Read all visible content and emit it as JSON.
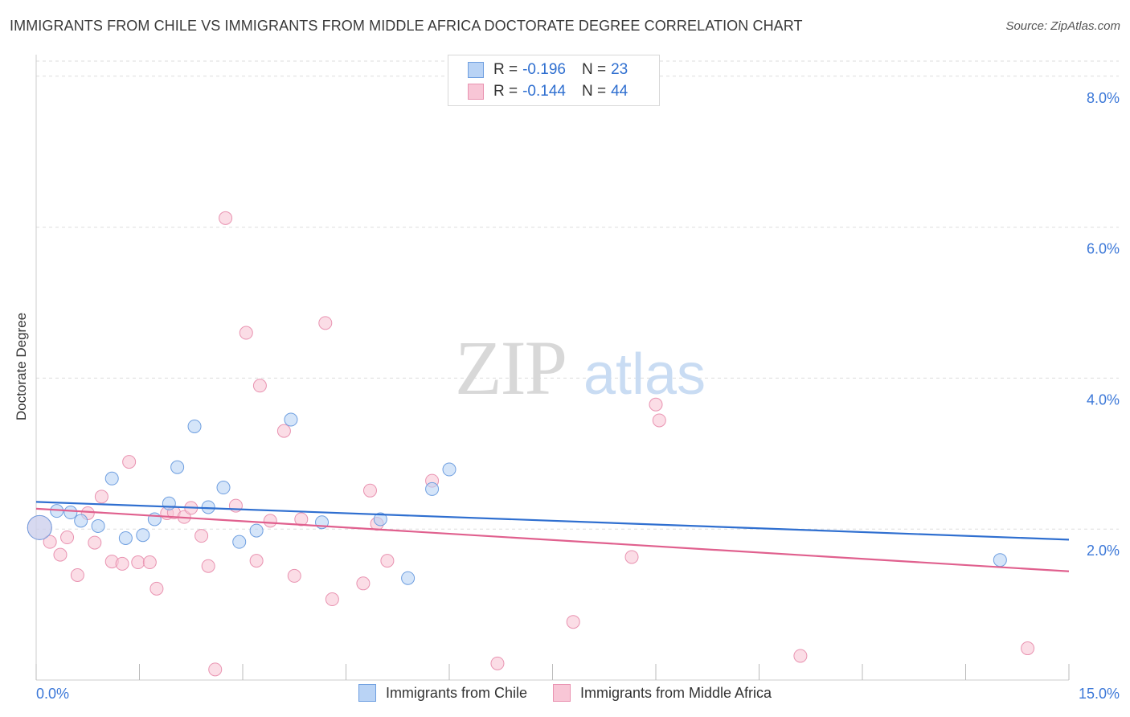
{
  "header": {
    "title": "IMMIGRANTS FROM CHILE VS IMMIGRANTS FROM MIDDLE AFRICA DOCTORATE DEGREE CORRELATION CHART",
    "source": "Source: ZipAtlas.com"
  },
  "watermark": {
    "zip": "ZIP",
    "atlas": "atlas"
  },
  "legend_stats": {
    "r_label": "R =",
    "n_label": "N =",
    "series": [
      {
        "r": "-0.196",
        "n": "23"
      },
      {
        "r": "-0.144",
        "n": "44"
      }
    ]
  },
  "colors": {
    "chile_fill": "#b9d3f5",
    "chile_stroke": "#6f9fe0",
    "chile_line": "#2f6fd0",
    "africa_fill": "#f8c6d6",
    "africa_stroke": "#e993b1",
    "africa_line": "#e0608e",
    "axis_text": "#3c78d8",
    "grid": "#dddddd"
  },
  "chart_data": {
    "type": "scatter",
    "title": "IMMIGRANTS FROM CHILE VS IMMIGRANTS FROM MIDDLE AFRICA DOCTORATE DEGREE CORRELATION CHART",
    "xlabel": "",
    "ylabel": "Doctorate Degree",
    "xlim": [
      0,
      15
    ],
    "ylim": [
      0,
      8.2
    ],
    "x_tick_labels": [
      "0.0%",
      "15.0%"
    ],
    "y_ticks": [
      2,
      4,
      6,
      8
    ],
    "y_tick_labels": [
      "2.0%",
      "4.0%",
      "6.0%",
      "8.0%"
    ],
    "grid": true,
    "legend_position": "top-center",
    "series": [
      {
        "name": "Immigrants from Chile",
        "r": -0.196,
        "n": 23,
        "trend": {
          "start": [
            0,
            2.36
          ],
          "end": [
            15,
            1.86
          ]
        },
        "points": [
          [
            0.05,
            2.02,
            1
          ],
          [
            0.3,
            2.24,
            0
          ],
          [
            0.5,
            2.22,
            0
          ],
          [
            0.65,
            2.11,
            0
          ],
          [
            0.9,
            2.04,
            0
          ],
          [
            1.1,
            2.67,
            0
          ],
          [
            1.3,
            1.88,
            0
          ],
          [
            1.55,
            1.92,
            0
          ],
          [
            1.72,
            2.13,
            0
          ],
          [
            1.93,
            2.34,
            0
          ],
          [
            2.05,
            2.82,
            0
          ],
          [
            2.3,
            3.36,
            0
          ],
          [
            2.5,
            2.29,
            0
          ],
          [
            2.72,
            2.55,
            0
          ],
          [
            2.95,
            1.83,
            0
          ],
          [
            3.2,
            1.98,
            0
          ],
          [
            3.7,
            3.45,
            0
          ],
          [
            4.15,
            2.09,
            0
          ],
          [
            5.0,
            2.13,
            0
          ],
          [
            5.4,
            1.35,
            0
          ],
          [
            5.75,
            2.53,
            0
          ],
          [
            6.0,
            2.79,
            0
          ],
          [
            14.0,
            1.59,
            0
          ]
        ]
      },
      {
        "name": "Immigrants from Middle Africa",
        "r": -0.144,
        "n": 44,
        "trend": {
          "start": [
            0,
            2.27
          ],
          "end": [
            15,
            1.44
          ]
        },
        "points": [
          [
            0.05,
            2.02,
            1
          ],
          [
            0.2,
            1.83,
            0
          ],
          [
            0.35,
            1.66,
            0
          ],
          [
            0.45,
            1.89,
            0
          ],
          [
            0.6,
            1.39,
            0
          ],
          [
            0.75,
            2.21,
            0
          ],
          [
            0.85,
            1.82,
            0
          ],
          [
            0.95,
            2.43,
            0
          ],
          [
            1.1,
            1.57,
            0
          ],
          [
            1.25,
            1.54,
            0
          ],
          [
            1.35,
            2.89,
            0
          ],
          [
            1.48,
            1.56,
            0
          ],
          [
            1.65,
            1.56,
            0
          ],
          [
            1.75,
            1.21,
            0
          ],
          [
            1.9,
            2.21,
            0
          ],
          [
            2.0,
            2.22,
            0
          ],
          [
            2.15,
            2.16,
            0
          ],
          [
            2.25,
            2.28,
            0
          ],
          [
            2.4,
            1.91,
            0
          ],
          [
            2.5,
            1.51,
            0
          ],
          [
            2.6,
            0.14,
            0
          ],
          [
            2.75,
            6.12,
            0
          ],
          [
            2.9,
            2.31,
            0
          ],
          [
            3.05,
            4.6,
            0
          ],
          [
            3.2,
            1.58,
            0
          ],
          [
            3.25,
            3.9,
            0
          ],
          [
            3.4,
            2.11,
            0
          ],
          [
            3.6,
            3.3,
            0
          ],
          [
            3.75,
            1.38,
            0
          ],
          [
            3.85,
            2.13,
            0
          ],
          [
            4.2,
            4.73,
            0
          ],
          [
            4.3,
            1.07,
            0
          ],
          [
            4.75,
            1.28,
            0
          ],
          [
            4.85,
            2.51,
            0
          ],
          [
            4.95,
            2.07,
            0
          ],
          [
            5.1,
            1.58,
            0
          ],
          [
            5.75,
            2.64,
            0
          ],
          [
            6.7,
            0.22,
            0
          ],
          [
            7.8,
            0.77,
            0
          ],
          [
            8.65,
            1.63,
            0
          ],
          [
            9.0,
            3.65,
            0
          ],
          [
            9.05,
            3.44,
            0
          ],
          [
            11.1,
            0.32,
            0
          ],
          [
            14.4,
            0.42,
            0
          ]
        ]
      }
    ]
  },
  "legend_bottom": {
    "items": [
      {
        "label": "Immigrants from Chile"
      },
      {
        "label": "Immigrants from Middle Africa"
      }
    ]
  }
}
